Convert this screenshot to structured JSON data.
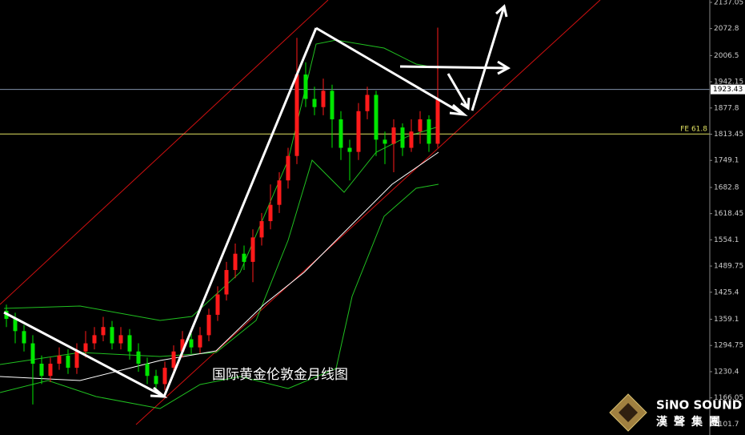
{
  "chart_data": {
    "type": "candlestick",
    "annotation": "国际黄金伦敦金月线图",
    "logo": {
      "name": "SiNO SOUND",
      "subtitle": "漢聲集團"
    },
    "ylim": [
      1074.9,
      2142.95
    ],
    "yticks": [
      2137.05,
      2072.8,
      2006.5,
      1942.15,
      1877.8,
      1813.45,
      1749.1,
      1682.8,
      1618.45,
      1554.1,
      1489.75,
      1425.4,
      1359.1,
      1294.75,
      1230.4,
      1166.05,
      1101.7
    ],
    "up_color": "#ff1a1a",
    "down_color": "#00e600",
    "open": [
      1380,
      1360,
      1330,
      1300,
      1250,
      1220,
      1250,
      1270,
      1240,
      1280,
      1300,
      1320,
      1340,
      1300,
      1320,
      1280,
      1250,
      1220,
      1200,
      1240,
      1280,
      1310,
      1290,
      1320,
      1370,
      1420,
      1480,
      1520,
      1500,
      1560,
      1600,
      1640,
      1700,
      1760,
      1960,
      1900,
      1880,
      1920,
      1850,
      1780,
      1770,
      1870,
      1910,
      1800,
      1790,
      1830,
      1780,
      1820,
      1850,
      1790
    ],
    "high": [
      1395,
      1375,
      1345,
      1320,
      1270,
      1265,
      1290,
      1285,
      1300,
      1330,
      1340,
      1365,
      1355,
      1340,
      1335,
      1300,
      1265,
      1235,
      1255,
      1295,
      1330,
      1325,
      1340,
      1385,
      1440,
      1500,
      1545,
      1540,
      1580,
      1620,
      1690,
      1720,
      1780,
      2050,
      1990,
      1930,
      1950,
      1935,
      1870,
      1800,
      1890,
      1930,
      1920,
      1820,
      1850,
      1840,
      1850,
      1870,
      1860,
      2075
    ],
    "low": [
      1340,
      1300,
      1280,
      1150,
      1200,
      1205,
      1235,
      1225,
      1225,
      1265,
      1285,
      1305,
      1285,
      1285,
      1260,
      1230,
      1200,
      1180,
      1185,
      1225,
      1265,
      1275,
      1275,
      1305,
      1355,
      1405,
      1460,
      1480,
      1450,
      1540,
      1580,
      1620,
      1680,
      1740,
      1880,
      1860,
      1860,
      1780,
      1750,
      1700,
      1750,
      1850,
      1760,
      1740,
      1720,
      1760,
      1770,
      1790,
      1770,
      1780
    ],
    "close": [
      1360,
      1330,
      1300,
      1250,
      1220,
      1250,
      1270,
      1240,
      1280,
      1300,
      1320,
      1340,
      1300,
      1320,
      1280,
      1250,
      1220,
      1200,
      1240,
      1280,
      1310,
      1290,
      1320,
      1370,
      1420,
      1480,
      1520,
      1500,
      1560,
      1600,
      1640,
      1700,
      1760,
      1960,
      1900,
      1880,
      1920,
      1850,
      1780,
      1770,
      1870,
      1910,
      1800,
      1790,
      1830,
      1780,
      1820,
      1850,
      1790,
      1900
    ],
    "levels": [
      {
        "label": "1923.43",
        "value": 1923.43,
        "color": "#8090a8"
      },
      {
        "label": "FE 61.8",
        "value": 1814,
        "color": "#e0e060"
      }
    ]
  }
}
